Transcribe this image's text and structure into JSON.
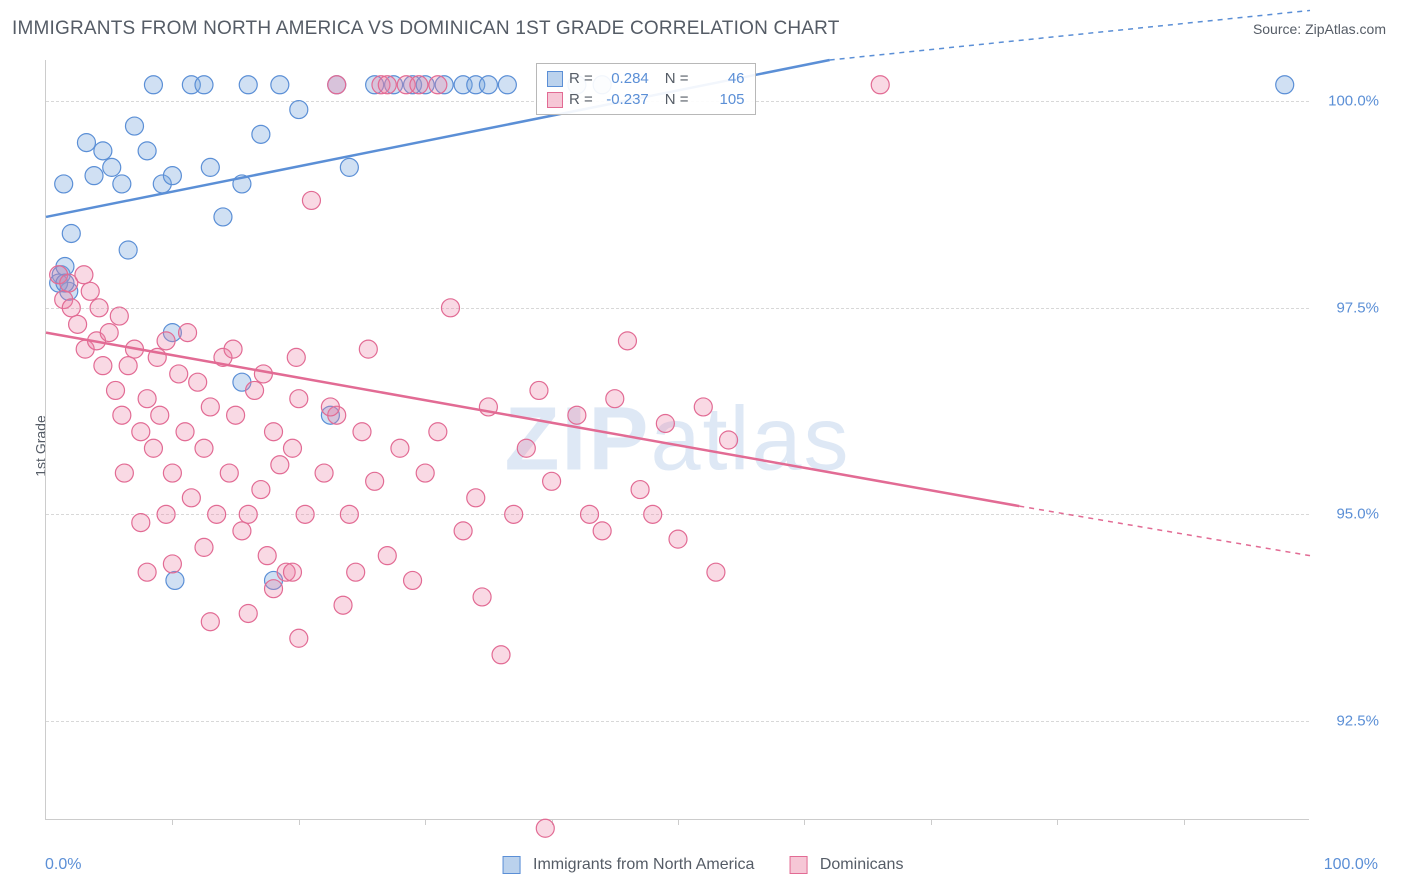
{
  "header": {
    "title": "IMMIGRANTS FROM NORTH AMERICA VS DOMINICAN 1ST GRADE CORRELATION CHART",
    "source": "Source: ZipAtlas.com"
  },
  "axes": {
    "ylabel": "1st Grade",
    "x_start": "0.0%",
    "x_end": "100.0%",
    "xlim": [
      0,
      100
    ],
    "ylim": [
      91.3,
      100.5
    ],
    "ytick_labels": [
      "100.0%",
      "97.5%",
      "95.0%",
      "92.5%"
    ],
    "ytick_values": [
      100.0,
      97.5,
      95.0,
      92.5
    ],
    "xtick_positions": [
      10,
      20,
      30,
      40,
      50,
      60,
      70,
      80,
      90
    ]
  },
  "series": [
    {
      "name": "Immigrants from North America",
      "fill": "rgba(120,165,220,0.35)",
      "stroke": "#5b8fd6",
      "swatch_fill": "rgba(120,165,220,0.5)",
      "swatch_stroke": "#5b8fd6",
      "marker_radius": 9,
      "stats": {
        "R": "0.284",
        "N": "46"
      },
      "regression": {
        "x1": 0,
        "y1": 98.6,
        "x2": 62,
        "y2": 100.5,
        "dash_from_x": 62,
        "dash_to_x": 100,
        "dash_y2": 101.1
      },
      "points": [
        [
          1.2,
          97.9
        ],
        [
          1.4,
          99.0
        ],
        [
          1.8,
          97.7
        ],
        [
          2.0,
          98.4
        ],
        [
          1.0,
          97.8
        ],
        [
          1.5,
          98.0
        ],
        [
          3.2,
          99.5
        ],
        [
          3.8,
          99.1
        ],
        [
          4.5,
          99.4
        ],
        [
          5.2,
          99.2
        ],
        [
          6.0,
          99.0
        ],
        [
          6.5,
          98.2
        ],
        [
          7.0,
          99.7
        ],
        [
          8.0,
          99.4
        ],
        [
          8.5,
          100.2
        ],
        [
          9.2,
          99.0
        ],
        [
          10.0,
          99.1
        ],
        [
          11.5,
          100.2
        ],
        [
          12.5,
          100.2
        ],
        [
          13.0,
          99.2
        ],
        [
          14.0,
          98.6
        ],
        [
          15.5,
          99.0
        ],
        [
          16.0,
          100.2
        ],
        [
          17.0,
          99.6
        ],
        [
          18.5,
          100.2
        ],
        [
          20.0,
          99.9
        ],
        [
          23.0,
          100.2
        ],
        [
          24.0,
          99.2
        ],
        [
          26.0,
          100.2
        ],
        [
          27.5,
          100.2
        ],
        [
          29.0,
          100.2
        ],
        [
          30.0,
          100.2
        ],
        [
          31.5,
          100.2
        ],
        [
          33.0,
          100.2
        ],
        [
          34.0,
          100.2
        ],
        [
          35.0,
          100.2
        ],
        [
          36.5,
          100.2
        ],
        [
          42.0,
          100.2
        ],
        [
          44.0,
          100.2
        ],
        [
          10.0,
          97.2
        ],
        [
          15.5,
          96.6
        ],
        [
          22.5,
          96.2
        ],
        [
          10.2,
          94.2
        ],
        [
          18.0,
          94.2
        ],
        [
          98.0,
          100.2
        ],
        [
          1.5,
          97.8
        ]
      ]
    },
    {
      "name": "Dominicans",
      "fill": "rgba(235,130,165,0.30)",
      "stroke": "#e26b94",
      "swatch_fill": "rgba(235,130,165,0.45)",
      "swatch_stroke": "#e26b94",
      "marker_radius": 9,
      "stats": {
        "R": "-0.237",
        "N": "105"
      },
      "regression": {
        "x1": 0,
        "y1": 97.2,
        "x2": 77,
        "y2": 95.1,
        "dash_from_x": 77,
        "dash_to_x": 100,
        "dash_y2": 94.5
      },
      "points": [
        [
          1.0,
          97.9
        ],
        [
          1.4,
          97.6
        ],
        [
          1.8,
          97.8
        ],
        [
          2.0,
          97.5
        ],
        [
          2.5,
          97.3
        ],
        [
          3.0,
          97.9
        ],
        [
          3.1,
          97.0
        ],
        [
          3.5,
          97.7
        ],
        [
          4.0,
          97.1
        ],
        [
          4.2,
          97.5
        ],
        [
          5.0,
          97.2
        ],
        [
          5.5,
          96.5
        ],
        [
          5.8,
          97.4
        ],
        [
          6.0,
          96.2
        ],
        [
          6.5,
          96.8
        ],
        [
          7.0,
          97.0
        ],
        [
          7.5,
          96.0
        ],
        [
          8.0,
          96.4
        ],
        [
          8.5,
          95.8
        ],
        [
          9.0,
          96.2
        ],
        [
          9.5,
          97.1
        ],
        [
          10.0,
          95.5
        ],
        [
          10.5,
          96.7
        ],
        [
          11.0,
          96.0
        ],
        [
          11.5,
          95.2
        ],
        [
          12.0,
          96.6
        ],
        [
          12.5,
          95.8
        ],
        [
          13.0,
          96.3
        ],
        [
          13.5,
          95.0
        ],
        [
          14.0,
          96.9
        ],
        [
          14.5,
          95.5
        ],
        [
          15.0,
          96.2
        ],
        [
          15.5,
          94.8
        ],
        [
          16.0,
          95.0
        ],
        [
          16.5,
          96.5
        ],
        [
          17.0,
          95.3
        ],
        [
          17.5,
          94.5
        ],
        [
          18.0,
          96.0
        ],
        [
          18.5,
          95.6
        ],
        [
          19.0,
          94.3
        ],
        [
          19.5,
          95.8
        ],
        [
          20.0,
          96.4
        ],
        [
          20.5,
          95.0
        ],
        [
          21.0,
          98.8
        ],
        [
          22.0,
          95.5
        ],
        [
          23.0,
          96.2
        ],
        [
          24.0,
          95.0
        ],
        [
          24.5,
          94.3
        ],
        [
          25.0,
          96.0
        ],
        [
          26.0,
          95.4
        ],
        [
          27.0,
          94.5
        ],
        [
          28.0,
          95.8
        ],
        [
          29.0,
          94.2
        ],
        [
          30.0,
          95.5
        ],
        [
          31.0,
          96.0
        ],
        [
          32.0,
          97.5
        ],
        [
          33.0,
          94.8
        ],
        [
          34.0,
          95.2
        ],
        [
          35.0,
          96.3
        ],
        [
          34.5,
          94.0
        ],
        [
          36.0,
          93.3
        ],
        [
          37.0,
          95.0
        ],
        [
          38.0,
          95.8
        ],
        [
          39.0,
          96.5
        ],
        [
          40.0,
          95.4
        ],
        [
          42.0,
          96.2
        ],
        [
          43.0,
          95.0
        ],
        [
          44.0,
          94.8
        ],
        [
          45.0,
          96.4
        ],
        [
          46.0,
          97.1
        ],
        [
          47.0,
          95.3
        ],
        [
          48.0,
          95.0
        ],
        [
          49.0,
          96.1
        ],
        [
          50.0,
          94.7
        ],
        [
          52.0,
          96.3
        ],
        [
          54.0,
          95.9
        ],
        [
          53.0,
          94.3
        ],
        [
          66.0,
          100.2
        ],
        [
          23.0,
          100.2
        ],
        [
          26.5,
          100.2
        ],
        [
          10.0,
          94.4
        ],
        [
          12.5,
          94.6
        ],
        [
          18.0,
          94.1
        ],
        [
          19.5,
          94.3
        ],
        [
          8.0,
          94.3
        ],
        [
          13.0,
          93.7
        ],
        [
          20.0,
          93.5
        ],
        [
          27.0,
          100.2
        ],
        [
          28.5,
          100.2
        ],
        [
          7.5,
          94.9
        ],
        [
          16.0,
          93.8
        ],
        [
          23.5,
          93.9
        ],
        [
          29.5,
          100.2
        ],
        [
          31.0,
          100.2
        ],
        [
          4.5,
          96.8
        ],
        [
          6.2,
          95.5
        ],
        [
          8.8,
          96.9
        ],
        [
          11.2,
          97.2
        ],
        [
          14.8,
          97.0
        ],
        [
          17.2,
          96.7
        ],
        [
          19.8,
          96.9
        ],
        [
          22.5,
          96.3
        ],
        [
          25.5,
          97.0
        ],
        [
          39.5,
          91.2
        ],
        [
          9.5,
          95.0
        ]
      ]
    }
  ],
  "legend": {
    "title1": "Immigrants from North America",
    "title2": "Dominicans"
  },
  "watermark": {
    "zip": "ZIP",
    "atlas": "atlas"
  },
  "colors": {
    "text": "#555c66",
    "accent": "#5b8fd6",
    "grid": "#d8d8d8",
    "axis": "#cccccc",
    "background": "#ffffff"
  }
}
